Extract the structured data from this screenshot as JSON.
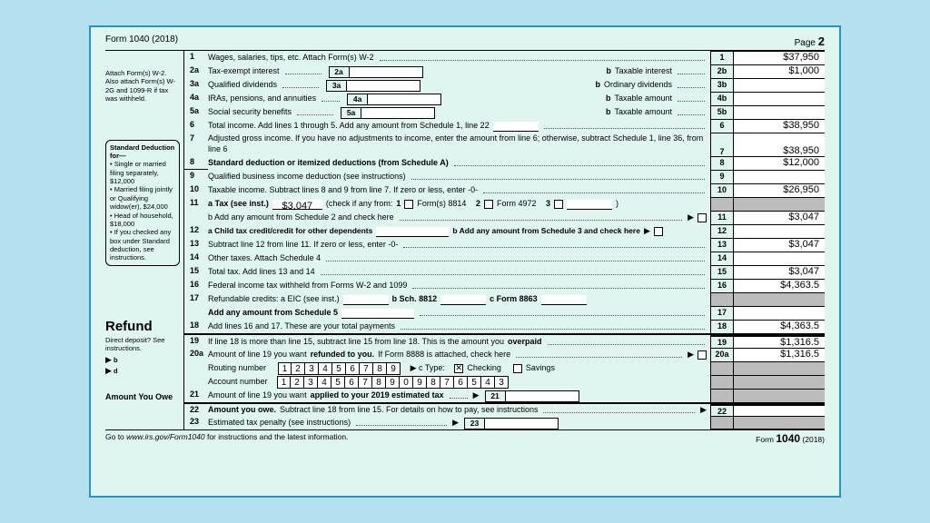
{
  "form": {
    "title": "Form 1040 (2018)",
    "page": "2"
  },
  "attachNote": "Attach Form(s) W-2. Also attach Form(s) W-2G and 1099-R if tax was withheld.",
  "stdDeduction": {
    "title": "Standard Deduction for—",
    "items": [
      "Single or married filing separately, $12,000",
      "Married filing jointly or Qualifying widow(er), $24,000",
      "Head of household, $18,000",
      "If you checked any box under Standard deduction, see instructions."
    ]
  },
  "refundLabel": "Refund",
  "directDeposit": "Direct deposit? See instructions.",
  "amountYouOwe": "Amount  You Owe",
  "footer": {
    "left_a": "Go to ",
    "left_b": "www.irs.gov/Form1040",
    "left_c": " for instructions and the latest information.",
    "right_a": "Form ",
    "right_b": "1040",
    "right_c": " (2018)"
  },
  "lines": {
    "1": {
      "desc": "Wages, salaries, tips, etc. Attach Form(s) W-2",
      "amt": "$37,950"
    },
    "2a": {
      "desc": "Tax-exempt interest",
      "box": "2a",
      "bdesc": "Taxable interest",
      "amt": "$1,000",
      "amtno": "2b"
    },
    "3a": {
      "desc": "Qualified dividends",
      "box": "3a",
      "bdesc": "Ordinary dividends",
      "amtno": "3b"
    },
    "4a": {
      "desc": "IRAs, pensions, and annuities",
      "box": "4a",
      "bdesc": "Taxable amount",
      "amtno": "4b"
    },
    "5a": {
      "desc": "Social security benefits",
      "box": "5a",
      "bdesc": "Taxable amount",
      "amtno": "5b"
    },
    "6": {
      "desc": "Total income. Add lines 1 through 5. Add any amount from Schedule 1, line 22",
      "amt": "$38,950"
    },
    "7": {
      "desc": "Adjusted gross income. If you have no adjustments to income, enter the amount from line 6; otherwise, subtract Schedule 1, line 36, from line 6",
      "amt": "$38,950"
    },
    "8": {
      "desc": "Standard deduction or itemized deductions (from Schedule A)",
      "amt": "$12,000"
    },
    "9": {
      "desc": "Qualified business income deduction (see instructions)"
    },
    "10": {
      "desc": "Taxable income. Subtract lines 8 and 9 from line 7. If zero or less, enter -0-",
      "amt": "$26,950"
    },
    "11a": {
      "pre": "a Tax (see inst.)",
      "val": "$3,047",
      "mid": "(check if any from:",
      "opt1": "Form(s) 8814",
      "opt2": "Form 4972"
    },
    "11b": {
      "desc": "b Add any amount from Schedule 2 and check here",
      "amt": "$3,047",
      "amtno": "11"
    },
    "12": {
      "a": "a Child tax credit/credit for other dependents",
      "b": "b Add any amount from Schedule 3 and check here",
      "amtno": "12"
    },
    "13": {
      "desc": "Subtract line 12 from line 11. If zero or less, enter -0-",
      "amt": "$3,047"
    },
    "14": {
      "desc": "Other taxes. Attach Schedule 4"
    },
    "15": {
      "desc": "Total tax. Add lines 13 and 14",
      "amt": "$3,047"
    },
    "16": {
      "desc": "Federal income tax withheld from Forms W-2 and 1099",
      "amt": "$4,363.5"
    },
    "17": {
      "a": "Refundable credits:  a EIC (see inst.)",
      "b": "b Sch. 8812",
      "c": "c Form 8863",
      "amtno": "17"
    },
    "17add": {
      "desc": "Add any amount from Schedule 5",
      "amtno": "17"
    },
    "18": {
      "desc": "Add lines 16 and 17. These are your total payments",
      "amt": "$4,363.5"
    },
    "19": {
      "desc": "If line 18 is more than line 15, subtract line 15 from line 18. This is the amount you ",
      "b": "overpaid",
      "amt": "$1,316.5"
    },
    "20a": {
      "desc": "Amount of line 19 you want ",
      "b": "refunded to you.",
      "c": " If Form 8888 is attached, check here",
      "amt": "$1,316.5",
      "amtno": "20a"
    },
    "20b": {
      "label": "Routing number",
      "digits": [
        "1",
        "2",
        "3",
        "4",
        "5",
        "6",
        "7",
        "8",
        "9"
      ],
      "ctype": "▶ c Type:",
      "checking": "Checking",
      "savings": "Savings"
    },
    "20d": {
      "label": "Account number",
      "digits": [
        "1",
        "2",
        "3",
        "4",
        "5",
        "6",
        "7",
        "8",
        "9",
        "0",
        "9",
        "8",
        "7",
        "6",
        "5",
        "4",
        "3"
      ]
    },
    "21": {
      "desc": "Amount of line 19 you want ",
      "b": "applied to your 2019 estimated tax",
      "box": "21"
    },
    "22": {
      "desc": "Amount you owe.",
      "rest": " Subtract line 18 from line 15. For details on how to pay, see instructions"
    },
    "23": {
      "desc": "Estimated tax penalty (see instructions)",
      "box": "23"
    }
  }
}
